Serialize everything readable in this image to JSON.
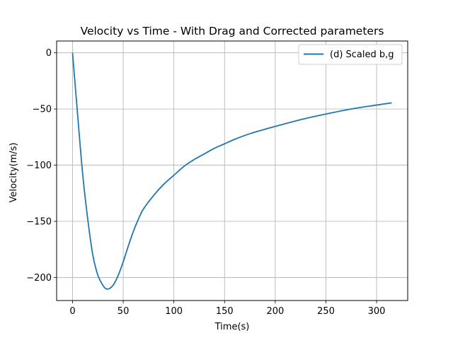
{
  "chart_data": {
    "type": "line",
    "title": "Velocity vs Time - With Drag and Corrected parameters",
    "xlabel": "Time(s)",
    "ylabel": "Velocity(m/s)",
    "xlim": [
      -15.7,
      330.7
    ],
    "ylim": [
      -220.5,
      10.5
    ],
    "xticks": [
      0,
      50,
      100,
      150,
      200,
      250,
      300
    ],
    "yticks": [
      0,
      -50,
      -100,
      -150,
      -200
    ],
    "xtick_labels": [
      "0",
      "50",
      "100",
      "150",
      "200",
      "250",
      "300"
    ],
    "ytick_labels": [
      "0",
      "−50",
      "−100",
      "−150",
      "−200"
    ],
    "grid": true,
    "legend_position": "top-right",
    "series": [
      {
        "name": "(d) Scaled b,g",
        "color": "#1f77b4",
        "x": [
          0,
          5,
          10,
          15,
          20,
          25,
          30,
          33,
          36,
          39,
          42,
          46,
          50,
          55,
          60,
          65,
          70,
          80,
          90,
          100,
          110,
          120,
          130,
          140,
          150,
          160,
          175,
          190,
          200,
          225,
          250,
          275,
          300,
          315
        ],
        "y": [
          0,
          -55,
          -108,
          -148,
          -180,
          -198,
          -207,
          -210,
          -210,
          -208,
          -204,
          -196,
          -186,
          -172,
          -159,
          -148,
          -139,
          -127,
          -117,
          -109,
          -101,
          -95,
          -90,
          -85,
          -81,
          -77,
          -72,
          -68,
          -65.5,
          -59.5,
          -54.5,
          -50,
          -46.5,
          -44.5
        ]
      }
    ]
  }
}
